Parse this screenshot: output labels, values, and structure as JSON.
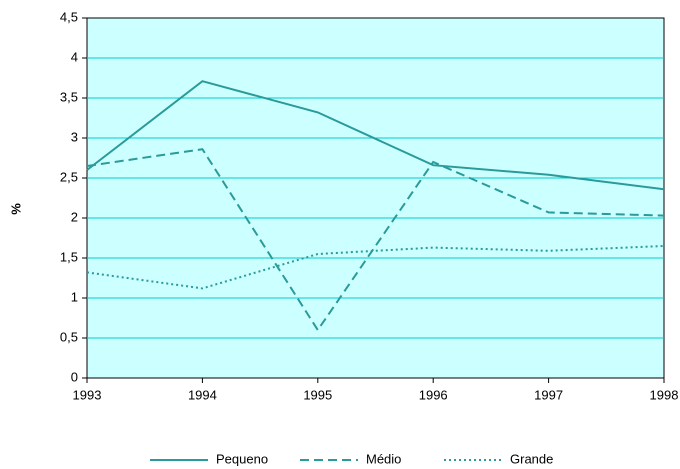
{
  "chart_data": {
    "type": "line",
    "y_label": "%",
    "x": [
      1993,
      1994,
      1995,
      1996,
      1997,
      1998
    ],
    "xlim": [
      1993,
      1998
    ],
    "xticks": [
      1993,
      1994,
      1995,
      1996,
      1997,
      1998
    ],
    "ylim": [
      0,
      4.5
    ],
    "yticks": [
      0,
      {
        "value": 0.5,
        "label": "0,5"
      },
      1,
      {
        "value": 1.5,
        "label": "1,5"
      },
      2,
      {
        "value": 2.5,
        "label": "2,5"
      },
      3,
      {
        "value": 3.5,
        "label": "3,5"
      },
      4,
      {
        "value": 4.5,
        "label": "4,5"
      }
    ],
    "grid": true,
    "legend": "bottom",
    "series": [
      {
        "name": "Pequeno",
        "color": "#2a9a9a",
        "dash": "solid",
        "values": [
          2.6,
          3.71,
          3.32,
          2.66,
          2.54,
          2.36
        ]
      },
      {
        "name": "Médio",
        "color": "#2a9a9a",
        "dash": "dashed",
        "values": [
          2.65,
          2.86,
          0.6,
          2.7,
          2.07,
          2.03
        ]
      },
      {
        "name": "Grande",
        "color": "#2a9a9a",
        "dash": "dotted",
        "values": [
          1.32,
          1.12,
          1.55,
          1.63,
          1.59,
          1.65
        ]
      }
    ]
  }
}
